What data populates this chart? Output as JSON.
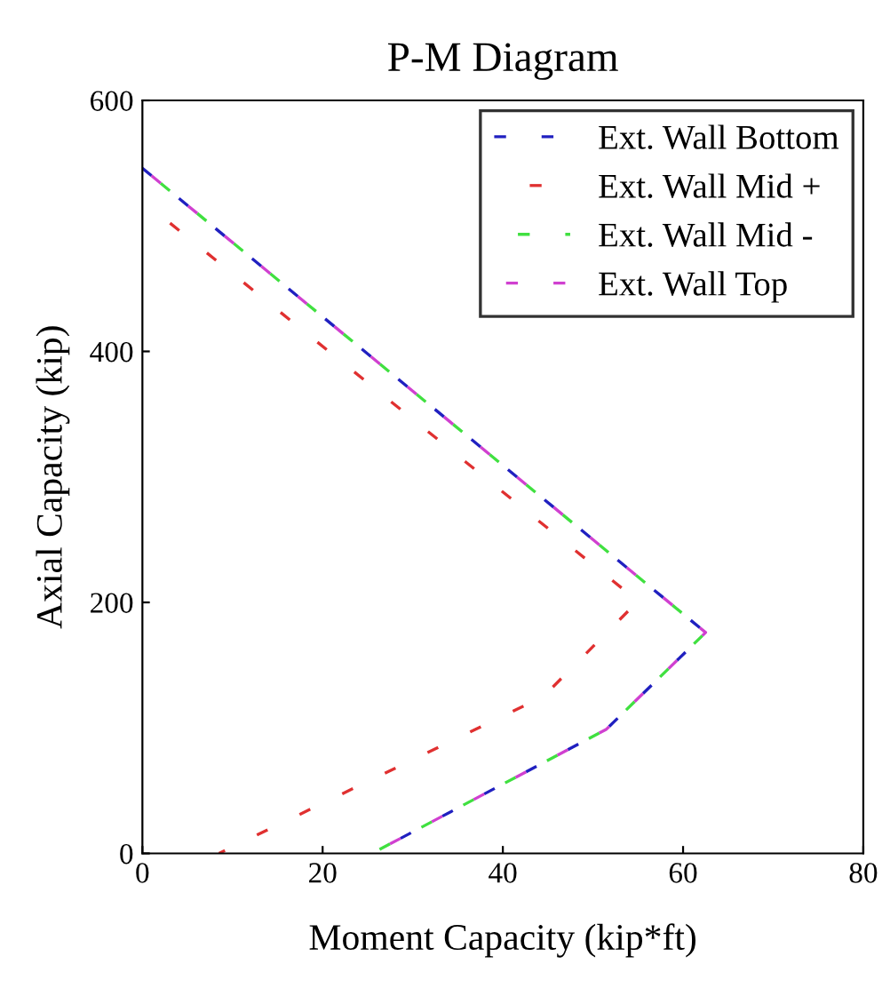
{
  "chart_data": {
    "type": "line",
    "title": "P-M Diagram",
    "xlabel": "Moment Capacity (kip*ft)",
    "ylabel": "Axial Capacity (kip)",
    "xlim": [
      0,
      80
    ],
    "ylim": [
      0,
      600
    ],
    "xticks": [
      0,
      20,
      40,
      60,
      80
    ],
    "yticks": [
      0,
      200,
      400,
      600
    ],
    "grid": false,
    "legend": "top right",
    "marker": "none",
    "series": [
      {
        "name": "Ext. Wall Bottom",
        "color": "#2020c0",
        "line_style": "dashed",
        "x": [
          0,
          62.5,
          51.5,
          25.5
        ],
        "values": [
          546,
          176,
          99,
          0
        ]
      },
      {
        "name": "Ext. Wall Mid +",
        "color": "#e03030",
        "line_style": "dashed",
        "x": [
          0,
          55,
          44.5,
          8.5
        ],
        "values": [
          520,
          201,
          125,
          0
        ]
      },
      {
        "name": "Ext. Wall Mid -",
        "color": "#40e040",
        "line_style": "dashed",
        "x": [
          0,
          62.5,
          51.5,
          25.5
        ],
        "values": [
          546,
          176,
          99,
          0
        ]
      },
      {
        "name": "Ext. Wall Top",
        "color": "#d040d0",
        "line_style": "dashed",
        "x": [
          0,
          62.5,
          51.5,
          25.5
        ],
        "values": [
          546,
          176,
          99,
          0
        ]
      }
    ]
  }
}
